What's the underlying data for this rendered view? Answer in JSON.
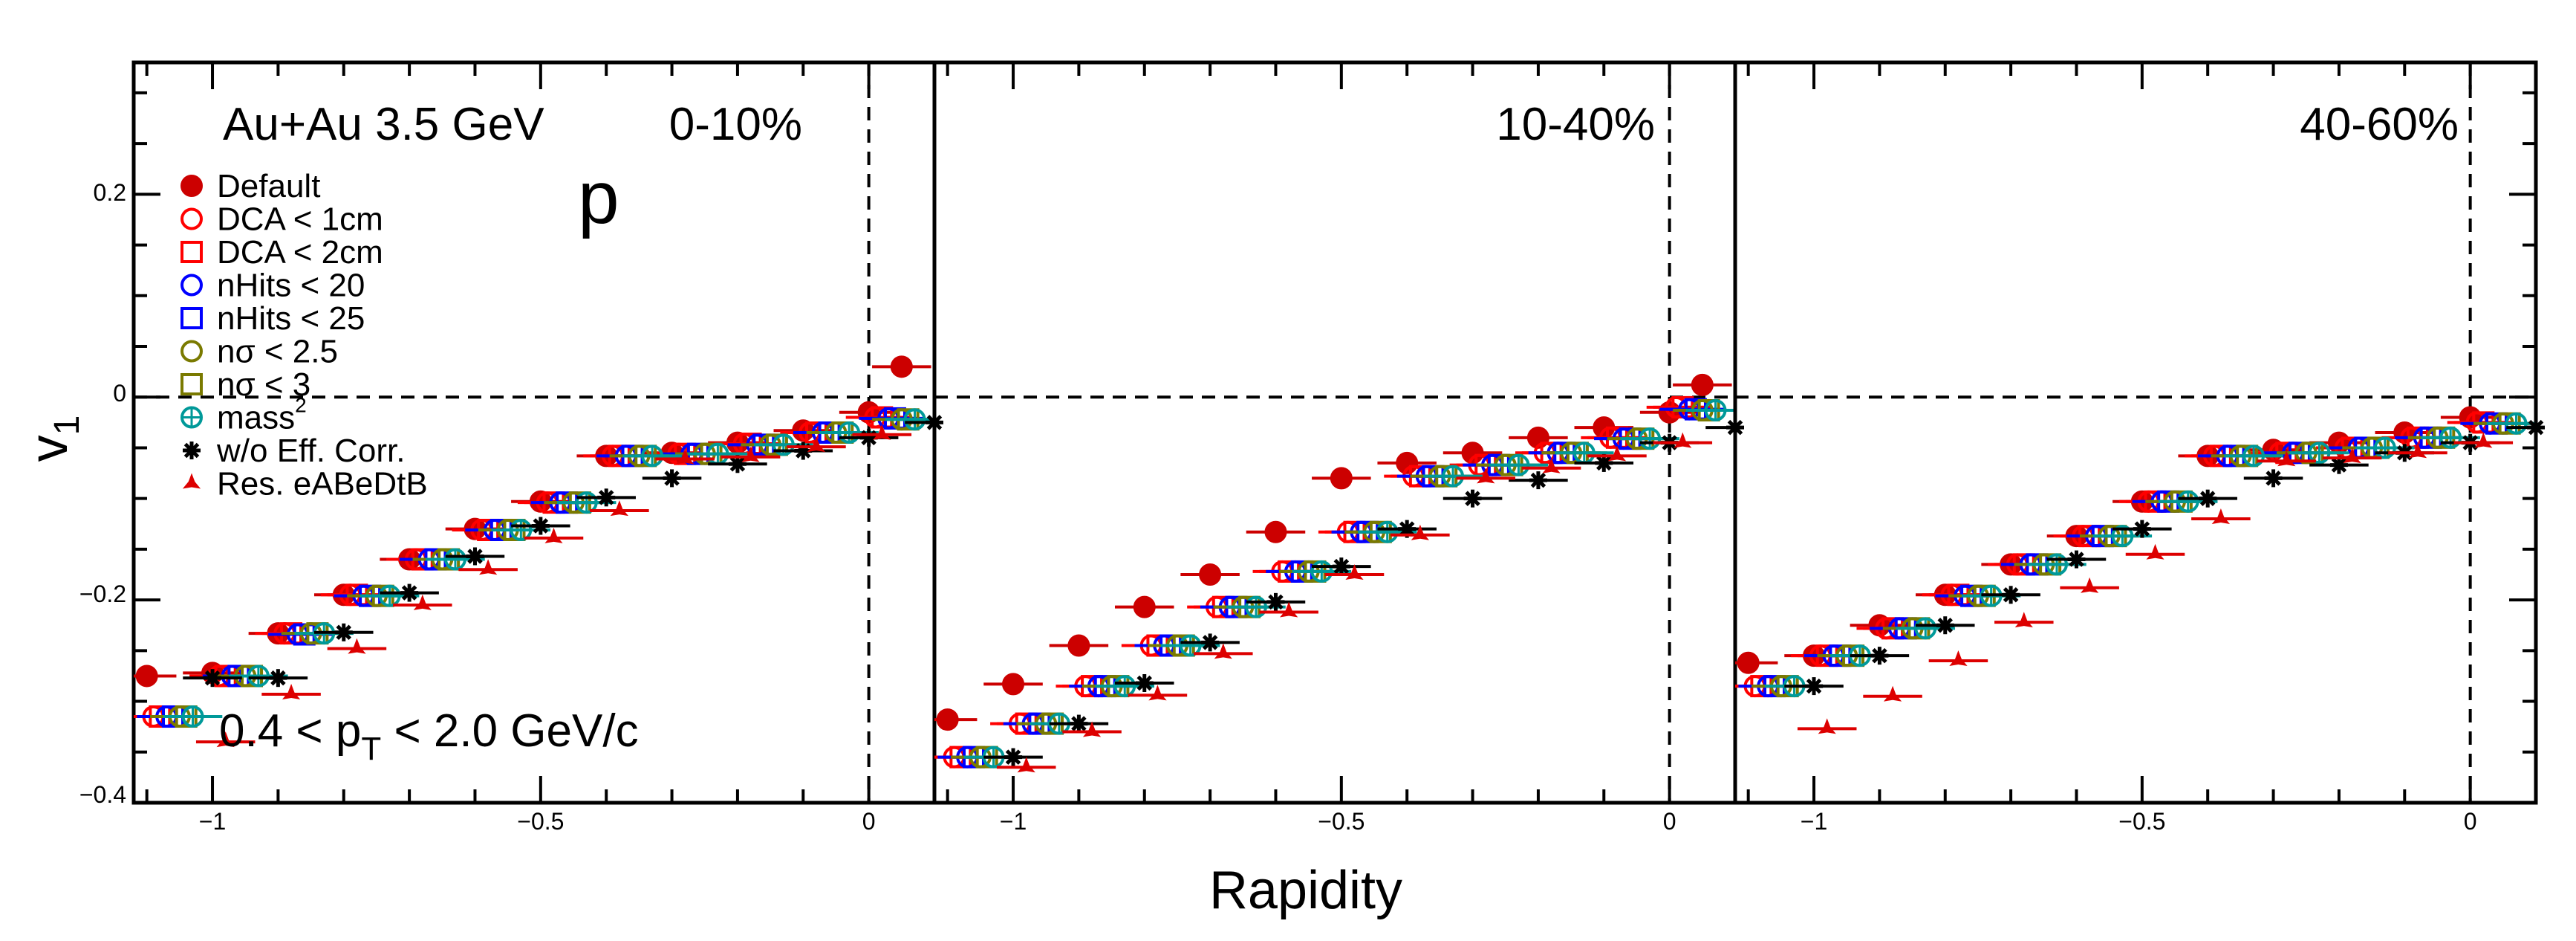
{
  "chart_data": {
    "type": "scatter",
    "xlabel": "Rapidity",
    "ylabel": "v",
    "ylabel_sub": "1",
    "x_ticks": [
      "−1",
      "−0.5",
      "0"
    ],
    "y_ticks": [
      "0.2",
      "0",
      "−0.2",
      "−0.4"
    ],
    "xlim": [
      -1.12,
      0.1
    ],
    "ylim": [
      -0.4,
      0.33
    ],
    "reference_lines": {
      "x": 0,
      "y": 0,
      "style": "dashed"
    },
    "texts": {
      "system": "Au+Au 3.5 GeV",
      "particle": "p",
      "pt_pre": "0.4 < p",
      "pt_sub": "T",
      "pt_post": " < 2.0 GeV/c"
    },
    "legend_placement": "top-left",
    "legend": [
      {
        "label": "Default",
        "sup": "",
        "marker": "filled-circle",
        "color": "#cc0000"
      },
      {
        "label": "DCA < 1cm",
        "sup": "",
        "marker": "open-circle",
        "color": "#ff0000"
      },
      {
        "label": "DCA < 2cm",
        "sup": "",
        "marker": "open-square",
        "color": "#ff0000"
      },
      {
        "label": "nHits < 20",
        "sup": "",
        "marker": "open-circle",
        "color": "#0000ff"
      },
      {
        "label": "nHits < 25",
        "sup": "",
        "marker": "open-square",
        "color": "#0000ff"
      },
      {
        "label": "nσ < 2.5",
        "sup": "",
        "marker": "open-circle",
        "color": "#7a7a00"
      },
      {
        "label": "nσ < 3",
        "sup": "",
        "marker": "open-square",
        "color": "#7a7a00"
      },
      {
        "label": "mass",
        "sup": "2",
        "marker": "circle-plus",
        "color": "#009999"
      },
      {
        "label": "w/o Eff. Corr.",
        "sup": "",
        "marker": "asterisk",
        "color": "#000000"
      },
      {
        "label": "Res. eABeDtB",
        "sup": "",
        "marker": "three-star",
        "color": "#dd0000"
      }
    ],
    "x_offsets": {
      "Default": 0,
      "DCA < 1cm": 0.01,
      "DCA < 2cm": 0.02,
      "nHits < 20": 0.03,
      "nHits < 25": 0.04,
      "nσ < 2.5": 0.05,
      "nσ < 3": 0.06,
      "mass2": 0.07,
      "w/o Eff. Corr.": 0.1,
      "Res. eABeDtB": 0.12
    },
    "panels": [
      {
        "label": "0-10%",
        "x": [
          -1.1,
          -1.0,
          -0.9,
          -0.8,
          -0.7,
          -0.6,
          -0.5,
          -0.4,
          -0.3,
          -0.2,
          -0.1,
          0.0
        ],
        "series": [
          {
            "name": "Default",
            "values": [
              -0.275,
              -0.272,
              -0.233,
              -0.195,
              -0.16,
              -0.13,
              -0.103,
              -0.058,
              -0.055,
              -0.045,
              -0.033,
              -0.015
            ]
          },
          {
            "name": "DCA < 1cm",
            "values": [
              -0.315,
              -0.275,
              -0.233,
              -0.195,
              -0.16,
              -0.131,
              -0.104,
              -0.058,
              -0.056,
              -0.046,
              -0.035,
              -0.02
            ]
          },
          {
            "name": "DCA < 2cm",
            "values": [
              -0.315,
              -0.275,
              -0.233,
              -0.195,
              -0.16,
              -0.131,
              -0.104,
              -0.058,
              -0.056,
              -0.046,
              -0.035,
              -0.02
            ]
          },
          {
            "name": "nHits < 20",
            "values": [
              -0.315,
              -0.275,
              -0.234,
              -0.196,
              -0.16,
              -0.131,
              -0.104,
              -0.058,
              -0.056,
              -0.047,
              -0.035,
              -0.021
            ]
          },
          {
            "name": "nHits < 25",
            "values": [
              -0.315,
              -0.275,
              -0.234,
              -0.196,
              -0.16,
              -0.131,
              -0.104,
              -0.058,
              -0.056,
              -0.047,
              -0.035,
              -0.021
            ]
          },
          {
            "name": "nσ < 2.5",
            "values": [
              -0.315,
              -0.275,
              -0.233,
              -0.196,
              -0.16,
              -0.131,
              -0.104,
              -0.058,
              -0.056,
              -0.047,
              -0.035,
              -0.022
            ]
          },
          {
            "name": "nσ < 3",
            "values": [
              -0.315,
              -0.275,
              -0.233,
              -0.196,
              -0.16,
              -0.131,
              -0.104,
              -0.058,
              -0.056,
              -0.047,
              -0.035,
              -0.022
            ]
          },
          {
            "name": "mass2",
            "values": [
              -0.315,
              -0.275,
              -0.233,
              -0.196,
              -0.16,
              -0.131,
              -0.104,
              -0.058,
              -0.056,
              -0.047,
              -0.035,
              -0.022
            ]
          },
          {
            "name": "w/o Eff. Corr.",
            "values": [
              -0.277,
              -0.277,
              -0.232,
              -0.193,
              -0.157,
              -0.127,
              -0.099,
              -0.08,
              -0.066,
              -0.053,
              -0.04,
              -0.025
            ]
          },
          {
            "name": "Res. eABeDtB",
            "values": [
              -0.34,
              -0.293,
              -0.248,
              -0.205,
              -0.17,
              -0.139,
              -0.112,
              -0.061,
              -0.059,
              -0.049,
              -0.037,
              -0.024
            ]
          }
        ],
        "extra_default_point": {
          "x": 0.05,
          "y": 0.03
        }
      },
      {
        "label": "10-40%",
        "x": [
          -1.1,
          -1.0,
          -0.9,
          -0.8,
          -0.7,
          -0.6,
          -0.5,
          -0.4,
          -0.3,
          -0.2,
          -0.1,
          0.0
        ],
        "series": [
          {
            "name": "Default",
            "values": [
              -0.318,
              -0.283,
              -0.245,
              -0.207,
              -0.175,
              -0.133,
              -0.08,
              -0.065,
              -0.055,
              -0.04,
              -0.03,
              -0.015
            ]
          },
          {
            "name": "DCA < 1cm",
            "values": [
              -0.355,
              -0.322,
              -0.285,
              -0.245,
              -0.207,
              -0.172,
              -0.133,
              -0.078,
              -0.067,
              -0.055,
              -0.04,
              -0.01
            ]
          },
          {
            "name": "DCA < 2cm",
            "values": [
              -0.355,
              -0.322,
              -0.285,
              -0.245,
              -0.207,
              -0.172,
              -0.133,
              -0.078,
              -0.067,
              -0.055,
              -0.04,
              -0.01
            ]
          },
          {
            "name": "nHits < 20",
            "values": [
              -0.355,
              -0.322,
              -0.285,
              -0.245,
              -0.207,
              -0.172,
              -0.133,
              -0.078,
              -0.067,
              -0.055,
              -0.041,
              -0.012
            ]
          },
          {
            "name": "nHits < 25",
            "values": [
              -0.355,
              -0.322,
              -0.285,
              -0.245,
              -0.207,
              -0.172,
              -0.133,
              -0.078,
              -0.067,
              -0.055,
              -0.041,
              -0.012
            ]
          },
          {
            "name": "nσ < 2.5",
            "values": [
              -0.355,
              -0.322,
              -0.285,
              -0.245,
              -0.207,
              -0.172,
              -0.133,
              -0.078,
              -0.067,
              -0.055,
              -0.041,
              -0.013
            ]
          },
          {
            "name": "nσ < 3",
            "values": [
              -0.355,
              -0.322,
              -0.285,
              -0.245,
              -0.207,
              -0.172,
              -0.133,
              -0.078,
              -0.067,
              -0.055,
              -0.041,
              -0.013
            ]
          },
          {
            "name": "mass2",
            "values": [
              -0.355,
              -0.322,
              -0.285,
              -0.245,
              -0.207,
              -0.172,
              -0.133,
              -0.078,
              -0.067,
              -0.055,
              -0.041,
              -0.013
            ]
          },
          {
            "name": "w/o Eff. Corr.",
            "values": [
              -0.355,
              -0.322,
              -0.282,
              -0.242,
              -0.202,
              -0.167,
              -0.13,
              -0.1,
              -0.082,
              -0.065,
              -0.045,
              -0.03
            ]
          },
          {
            "name": "Res. eABeDtB",
            "values": [
              -0.365,
              -0.33,
              -0.294,
              -0.253,
              -0.212,
              -0.175,
              -0.136,
              -0.08,
              -0.07,
              -0.058,
              -0.045,
              -0.03
            ]
          }
        ],
        "extra_default_point": {
          "x": 0.05,
          "y": 0.012
        }
      },
      {
        "label": "40-60%",
        "x": [
          -1.1,
          -1.0,
          -0.9,
          -0.8,
          -0.7,
          -0.6,
          -0.5,
          -0.4,
          -0.3,
          -0.2,
          -0.1,
          0.0
        ],
        "series": [
          {
            "name": "Default",
            "values": [
              -0.262,
              -0.255,
              -0.225,
              -0.195,
              -0.165,
              -0.137,
              -0.103,
              -0.058,
              -0.052,
              -0.045,
              -0.035,
              -0.02
            ]
          },
          {
            "name": "DCA < 1cm",
            "values": [
              -0.285,
              -0.255,
              -0.228,
              -0.195,
              -0.165,
              -0.137,
              -0.103,
              -0.058,
              -0.055,
              -0.05,
              -0.04,
              -0.025
            ]
          },
          {
            "name": "DCA < 2cm",
            "values": [
              -0.285,
              -0.255,
              -0.228,
              -0.195,
              -0.165,
              -0.137,
              -0.103,
              -0.058,
              -0.055,
              -0.05,
              -0.04,
              -0.025
            ]
          },
          {
            "name": "nHits < 20",
            "values": [
              -0.285,
              -0.255,
              -0.228,
              -0.196,
              -0.165,
              -0.137,
              -0.103,
              -0.058,
              -0.055,
              -0.05,
              -0.04,
              -0.026
            ]
          },
          {
            "name": "nHits < 25",
            "values": [
              -0.285,
              -0.255,
              -0.228,
              -0.196,
              -0.165,
              -0.137,
              -0.103,
              -0.058,
              -0.055,
              -0.05,
              -0.04,
              -0.026
            ]
          },
          {
            "name": "nσ < 2.5",
            "values": [
              -0.285,
              -0.255,
              -0.228,
              -0.196,
              -0.165,
              -0.137,
              -0.103,
              -0.058,
              -0.055,
              -0.05,
              -0.04,
              -0.026
            ]
          },
          {
            "name": "nσ < 3",
            "values": [
              -0.285,
              -0.255,
              -0.228,
              -0.196,
              -0.165,
              -0.137,
              -0.103,
              -0.058,
              -0.055,
              -0.05,
              -0.04,
              -0.026
            ]
          },
          {
            "name": "mass2",
            "values": [
              -0.285,
              -0.255,
              -0.228,
              -0.196,
              -0.165,
              -0.137,
              -0.103,
              -0.058,
              -0.055,
              -0.05,
              -0.04,
              -0.026
            ]
          },
          {
            "name": "w/o Eff. Corr.",
            "values": [
              -0.285,
              -0.255,
              -0.225,
              -0.195,
              -0.16,
              -0.13,
              -0.1,
              -0.08,
              -0.067,
              -0.055,
              -0.045,
              -0.03
            ]
          },
          {
            "name": "Res. eABeDtB",
            "values": [
              -0.327,
              -0.295,
              -0.26,
              -0.222,
              -0.188,
              -0.155,
              -0.12,
              -0.063,
              -0.06,
              -0.055,
              -0.045,
              -0.032
            ]
          }
        ],
        "extra_default_point": null
      }
    ]
  }
}
